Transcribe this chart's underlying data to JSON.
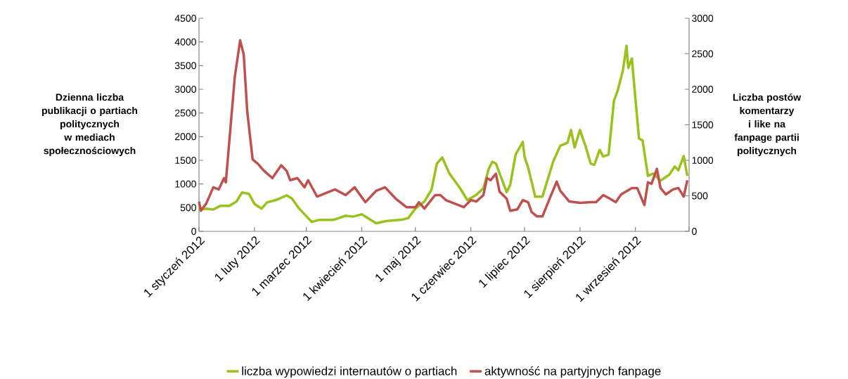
{
  "chart_data": {
    "type": "line",
    "ylabel": "Dzienna liczba publikacji o partiach politycznych w mediach społecznościowych",
    "y2label": "Liczba postów komentarzy i like na fanpage partii politycznych",
    "xlim": [
      "2012-01-01",
      "2012-10-01"
    ],
    "xticks": [
      {
        "value": "2012-01-01",
        "label": "1 styczeń 2012"
      },
      {
        "value": "2012-02-01",
        "label": "1 luty 2012"
      },
      {
        "value": "2012-03-01",
        "label": "1 marzec 2012"
      },
      {
        "value": "2012-04-01",
        "label": "1 kwiecień 2012"
      },
      {
        "value": "2012-05-01",
        "label": "1 maj 2012"
      },
      {
        "value": "2012-06-01",
        "label": "1 czerwiec 2012"
      },
      {
        "value": "2012-07-01",
        "label": "1 lipiec 2012"
      },
      {
        "value": "2012-08-01",
        "label": "1 sierpień 2012"
      },
      {
        "value": "2012-09-01",
        "label": "1 wrzesień 2012"
      },
      {
        "value": "2012-10-01",
        "label": null
      }
    ],
    "ylim": [
      0,
      4500
    ],
    "yticks": [
      0,
      500,
      1000,
      1500,
      2000,
      2500,
      3000,
      3500,
      4000,
      4500
    ],
    "y2lim": [
      0,
      3000
    ],
    "y2ticks": [
      0,
      500,
      1000,
      1500,
      2000,
      2500,
      3000
    ],
    "grid": false,
    "legend": "bottom",
    "marker": "none",
    "line_style": "solid",
    "series": [
      {
        "name": "liczba wypowiedzi internautów o partiach",
        "color": "#99c31c",
        "x": [
          "2012-01-01",
          "2012-01-05",
          "2012-01-09",
          "2012-01-13",
          "2012-01-18",
          "2012-01-22",
          "2012-01-25",
          "2012-01-29",
          "2012-02-01",
          "2012-02-05",
          "2012-02-08",
          "2012-02-13",
          "2012-02-19",
          "2012-02-22",
          "2012-02-26",
          "2012-03-04",
          "2012-03-08",
          "2012-03-16",
          "2012-03-23",
          "2012-03-27",
          "2012-04-01",
          "2012-04-09",
          "2012-04-15",
          "2012-04-24",
          "2012-04-27",
          "2012-05-01",
          "2012-05-06",
          "2012-05-10",
          "2012-05-13",
          "2012-05-16",
          "2012-05-20",
          "2012-05-26",
          "2012-05-30",
          "2012-06-04",
          "2012-06-08",
          "2012-06-11",
          "2012-06-13",
          "2012-06-15",
          "2012-06-21",
          "2012-06-23",
          "2012-06-26",
          "2012-06-30",
          "2012-07-01",
          "2012-07-03",
          "2012-07-07",
          "2012-07-11",
          "2012-07-17",
          "2012-07-21",
          "2012-07-25",
          "2012-07-27",
          "2012-07-29",
          "2012-08-01",
          "2012-08-04",
          "2012-08-07",
          "2012-08-09",
          "2012-08-12",
          "2012-08-14",
          "2012-08-17",
          "2012-08-20",
          "2012-08-22",
          "2012-08-25",
          "2012-08-27",
          "2012-08-28",
          "2012-08-30",
          "2012-09-03",
          "2012-09-05",
          "2012-09-08",
          "2012-09-11",
          "2012-09-15",
          "2012-09-20",
          "2012-09-23",
          "2012-09-25",
          "2012-09-28",
          "2012-09-30"
        ],
        "values": [
          450,
          480,
          460,
          540,
          540,
          630,
          820,
          790,
          580,
          480,
          610,
          660,
          760,
          690,
          480,
          200,
          240,
          240,
          330,
          310,
          360,
          170,
          220,
          250,
          280,
          480,
          630,
          880,
          1430,
          1560,
          1220,
          910,
          660,
          770,
          910,
          1320,
          1470,
          1430,
          830,
          980,
          1620,
          1890,
          1580,
          1350,
          730,
          730,
          1470,
          1810,
          1870,
          2140,
          1770,
          2140,
          1810,
          1430,
          1400,
          1720,
          1580,
          1620,
          2760,
          2960,
          3400,
          3920,
          3450,
          3650,
          1960,
          1920,
          1170,
          1220,
          1070,
          1200,
          1370,
          1290,
          1590,
          1170
        ]
      },
      {
        "name": "aktywność na partyjnych fanpage",
        "color": "#c0504d",
        "axis": "y2",
        "x": [
          "2012-01-01",
          "2012-01-02",
          "2012-01-05",
          "2012-01-09",
          "2012-01-12",
          "2012-01-15",
          "2012-01-16",
          "2012-01-18",
          "2012-01-21",
          "2012-01-24",
          "2012-01-26",
          "2012-01-28",
          "2012-01-31",
          "2012-02-03",
          "2012-02-06",
          "2012-02-11",
          "2012-02-16",
          "2012-02-19",
          "2012-02-21",
          "2012-02-25",
          "2012-02-29",
          "2012-03-02",
          "2012-03-07",
          "2012-03-17",
          "2012-03-23",
          "2012-03-28",
          "2012-04-03",
          "2012-04-09",
          "2012-04-14",
          "2012-04-20",
          "2012-04-26",
          "2012-05-01",
          "2012-05-03",
          "2012-05-06",
          "2012-05-12",
          "2012-05-15",
          "2012-05-18",
          "2012-05-23",
          "2012-05-28",
          "2012-06-01",
          "2012-06-04",
          "2012-06-08",
          "2012-06-10",
          "2012-06-12",
          "2012-06-15",
          "2012-06-17",
          "2012-06-21",
          "2012-06-23",
          "2012-06-27",
          "2012-06-30",
          "2012-07-03",
          "2012-07-05",
          "2012-07-08",
          "2012-07-11",
          "2012-07-15",
          "2012-07-19",
          "2012-07-21",
          "2012-07-26",
          "2012-08-01",
          "2012-08-07",
          "2012-08-10",
          "2012-08-14",
          "2012-08-17",
          "2012-08-21",
          "2012-08-24",
          "2012-08-30",
          "2012-09-02",
          "2012-09-06",
          "2012-09-08",
          "2012-09-10",
          "2012-09-13",
          "2012-09-15",
          "2012-09-18",
          "2012-09-22",
          "2012-09-25",
          "2012-09-28",
          "2012-09-30"
        ],
        "values": [
          420,
          290,
          390,
          620,
          590,
          750,
          690,
          1280,
          2170,
          2690,
          2490,
          1680,
          1010,
          950,
          860,
          750,
          930,
          850,
          720,
          750,
          620,
          720,
          490,
          590,
          510,
          620,
          410,
          570,
          620,
          460,
          340,
          340,
          410,
          320,
          510,
          510,
          440,
          390,
          340,
          440,
          420,
          510,
          750,
          720,
          810,
          560,
          460,
          290,
          310,
          440,
          410,
          270,
          210,
          210,
          460,
          700,
          570,
          420,
          400,
          410,
          410,
          510,
          470,
          410,
          520,
          610,
          610,
          370,
          690,
          670,
          880,
          610,
          520,
          590,
          610,
          490,
          720
        ]
      }
    ]
  }
}
